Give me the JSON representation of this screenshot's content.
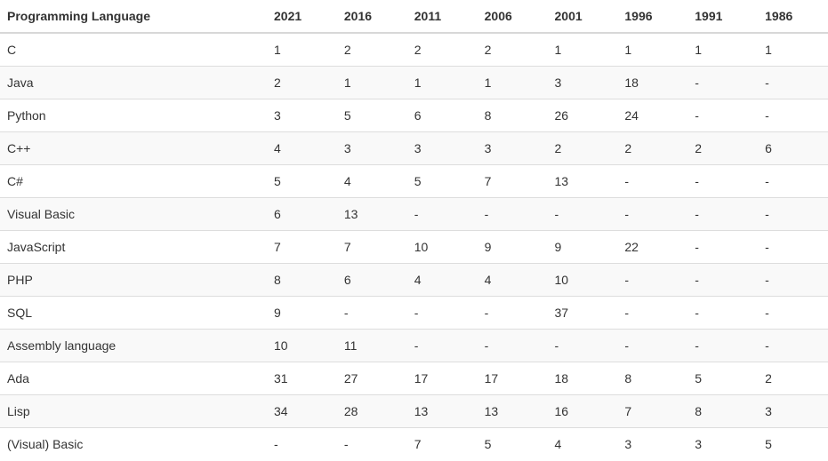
{
  "colors": {
    "text": "#333333",
    "background": "#ffffff",
    "stripe": "#f9f9f9",
    "row_border": "#dddddd",
    "header_border": "#d8d8d8"
  },
  "table": {
    "columns": [
      "Programming Language",
      "2021",
      "2016",
      "2011",
      "2006",
      "2001",
      "1996",
      "1991",
      "1986"
    ],
    "rows": [
      [
        "C",
        "1",
        "2",
        "2",
        "2",
        "1",
        "1",
        "1",
        "1"
      ],
      [
        "Java",
        "2",
        "1",
        "1",
        "1",
        "3",
        "18",
        "-",
        "-"
      ],
      [
        "Python",
        "3",
        "5",
        "6",
        "8",
        "26",
        "24",
        "-",
        "-"
      ],
      [
        "C++",
        "4",
        "3",
        "3",
        "3",
        "2",
        "2",
        "2",
        "6"
      ],
      [
        "C#",
        "5",
        "4",
        "5",
        "7",
        "13",
        "-",
        "-",
        "-"
      ],
      [
        "Visual Basic",
        "6",
        "13",
        "-",
        "-",
        "-",
        "-",
        "-",
        "-"
      ],
      [
        "JavaScript",
        "7",
        "7",
        "10",
        "9",
        "9",
        "22",
        "-",
        "-"
      ],
      [
        "PHP",
        "8",
        "6",
        "4",
        "4",
        "10",
        "-",
        "-",
        "-"
      ],
      [
        "SQL",
        "9",
        "-",
        "-",
        "-",
        "37",
        "-",
        "-",
        "-"
      ],
      [
        "Assembly language",
        "10",
        "11",
        "-",
        "-",
        "-",
        "-",
        "-",
        "-"
      ],
      [
        "Ada",
        "31",
        "27",
        "17",
        "17",
        "18",
        "8",
        "5",
        "2"
      ],
      [
        "Lisp",
        "34",
        "28",
        "13",
        "13",
        "16",
        "7",
        "8",
        "3"
      ],
      [
        "(Visual) Basic",
        "-",
        "-",
        "7",
        "5",
        "4",
        "3",
        "3",
        "5"
      ]
    ]
  },
  "chart_data": {
    "type": "table",
    "columns": [
      "Programming Language",
      "2021",
      "2016",
      "2011",
      "2006",
      "2001",
      "1996",
      "1991",
      "1986"
    ],
    "rows": [
      {
        "language": "C",
        "ranks": [
          1,
          2,
          2,
          2,
          1,
          1,
          1,
          1
        ]
      },
      {
        "language": "Java",
        "ranks": [
          2,
          1,
          1,
          1,
          3,
          18,
          null,
          null
        ]
      },
      {
        "language": "Python",
        "ranks": [
          3,
          5,
          6,
          8,
          26,
          24,
          null,
          null
        ]
      },
      {
        "language": "C++",
        "ranks": [
          4,
          3,
          3,
          3,
          2,
          2,
          2,
          6
        ]
      },
      {
        "language": "C#",
        "ranks": [
          5,
          4,
          5,
          7,
          13,
          null,
          null,
          null
        ]
      },
      {
        "language": "Visual Basic",
        "ranks": [
          6,
          13,
          null,
          null,
          null,
          null,
          null,
          null
        ]
      },
      {
        "language": "JavaScript",
        "ranks": [
          7,
          7,
          10,
          9,
          9,
          22,
          null,
          null
        ]
      },
      {
        "language": "PHP",
        "ranks": [
          8,
          6,
          4,
          4,
          10,
          null,
          null,
          null
        ]
      },
      {
        "language": "SQL",
        "ranks": [
          9,
          null,
          null,
          null,
          37,
          null,
          null,
          null
        ]
      },
      {
        "language": "Assembly language",
        "ranks": [
          10,
          11,
          null,
          null,
          null,
          null,
          null,
          null
        ]
      },
      {
        "language": "Ada",
        "ranks": [
          31,
          27,
          17,
          17,
          18,
          8,
          5,
          2
        ]
      },
      {
        "language": "Lisp",
        "ranks": [
          34,
          28,
          13,
          13,
          16,
          7,
          8,
          3
        ]
      },
      {
        "language": "(Visual) Basic",
        "ranks": [
          null,
          null,
          7,
          5,
          4,
          3,
          3,
          5
        ]
      }
    ],
    "missing_value_marker": "-",
    "layout": {
      "striped_rows": true,
      "header_bold": true,
      "grid": "horizontal-only"
    }
  }
}
